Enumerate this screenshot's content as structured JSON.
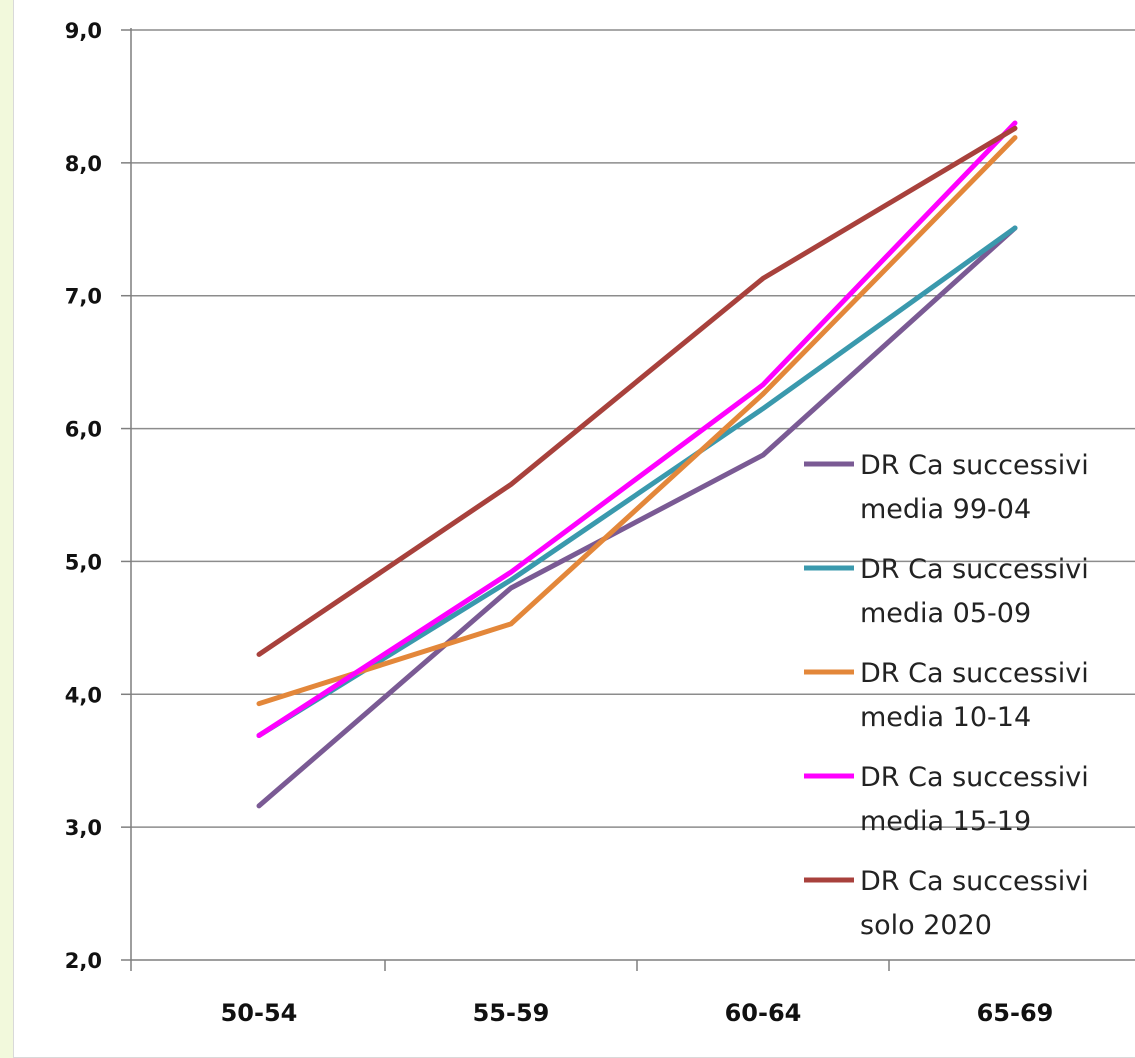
{
  "chart_data": {
    "type": "line",
    "categories": [
      "50-54",
      "55-59",
      "60-64",
      "65-69"
    ],
    "ylim": [
      2,
      9
    ],
    "y_ticks": [
      "2,0",
      "3,0",
      "4,0",
      "5,0",
      "6,0",
      "7,0",
      "8,0",
      "9,0"
    ],
    "grid": true,
    "legend_position": "right",
    "series": [
      {
        "name": "DR Ca successivi media 99-04",
        "legend_lines": [
          "DR Ca successivi",
          "media 99-04"
        ],
        "color": "#7a5a94",
        "values": [
          3.16,
          4.8,
          5.8,
          7.51
        ]
      },
      {
        "name": "DR Ca successivi media 05-09",
        "legend_lines": [
          "DR Ca successivi",
          "media 05-09"
        ],
        "color": "#3a99ad",
        "values": [
          3.69,
          4.86,
          6.15,
          7.51
        ]
      },
      {
        "name": "DR Ca successivi media 10-14",
        "legend_lines": [
          "DR Ca successivi",
          "media 10-14"
        ],
        "color": "#e3873a",
        "values": [
          3.93,
          4.53,
          6.26,
          8.19
        ]
      },
      {
        "name": "DR Ca successivi media 15-19",
        "legend_lines": [
          "DR Ca successivi",
          "media 15-19"
        ],
        "color": "#ff00ff",
        "values": [
          3.69,
          4.92,
          6.33,
          8.3
        ]
      },
      {
        "name": "DR Ca successivi solo 2020",
        "legend_lines": [
          "DR Ca successivi",
          "solo 2020"
        ],
        "color": "#a8413c",
        "values": [
          4.3,
          5.58,
          7.13,
          8.26
        ]
      }
    ]
  }
}
